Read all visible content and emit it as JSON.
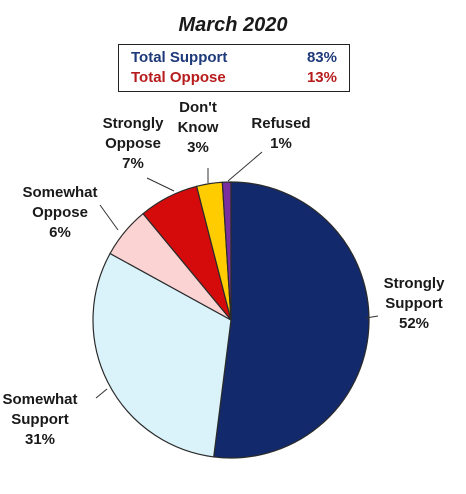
{
  "title": "March 2020",
  "summary": {
    "support_label": "Total Support",
    "support_value": "83%",
    "oppose_label": "Total Oppose",
    "oppose_value": "13%",
    "support_color": "#1f3a7a",
    "oppose_color": "#b71c1c"
  },
  "chart_data": {
    "type": "pie",
    "title": "March 2020",
    "slices": [
      {
        "label_lines": [
          "Strongly",
          "Support"
        ],
        "value": 52,
        "value_label": "52%",
        "color": "#12296b"
      },
      {
        "label_lines": [
          "Somewhat",
          "Support"
        ],
        "value": 31,
        "value_label": "31%",
        "color": "#daf3fb"
      },
      {
        "label_lines": [
          "Somewhat",
          "Oppose"
        ],
        "value": 6,
        "value_label": "6%",
        "color": "#fbd3d3"
      },
      {
        "label_lines": [
          "Strongly",
          "Oppose"
        ],
        "value": 7,
        "value_label": "7%",
        "color": "#d50b0b"
      },
      {
        "label_lines": [
          "Don't",
          "Know"
        ],
        "value": 3,
        "value_label": "3%",
        "color": "#ffcc00"
      },
      {
        "label_lines": [
          "Refused"
        ],
        "value": 1,
        "value_label": "1%",
        "color": "#7a2fa0"
      }
    ]
  }
}
